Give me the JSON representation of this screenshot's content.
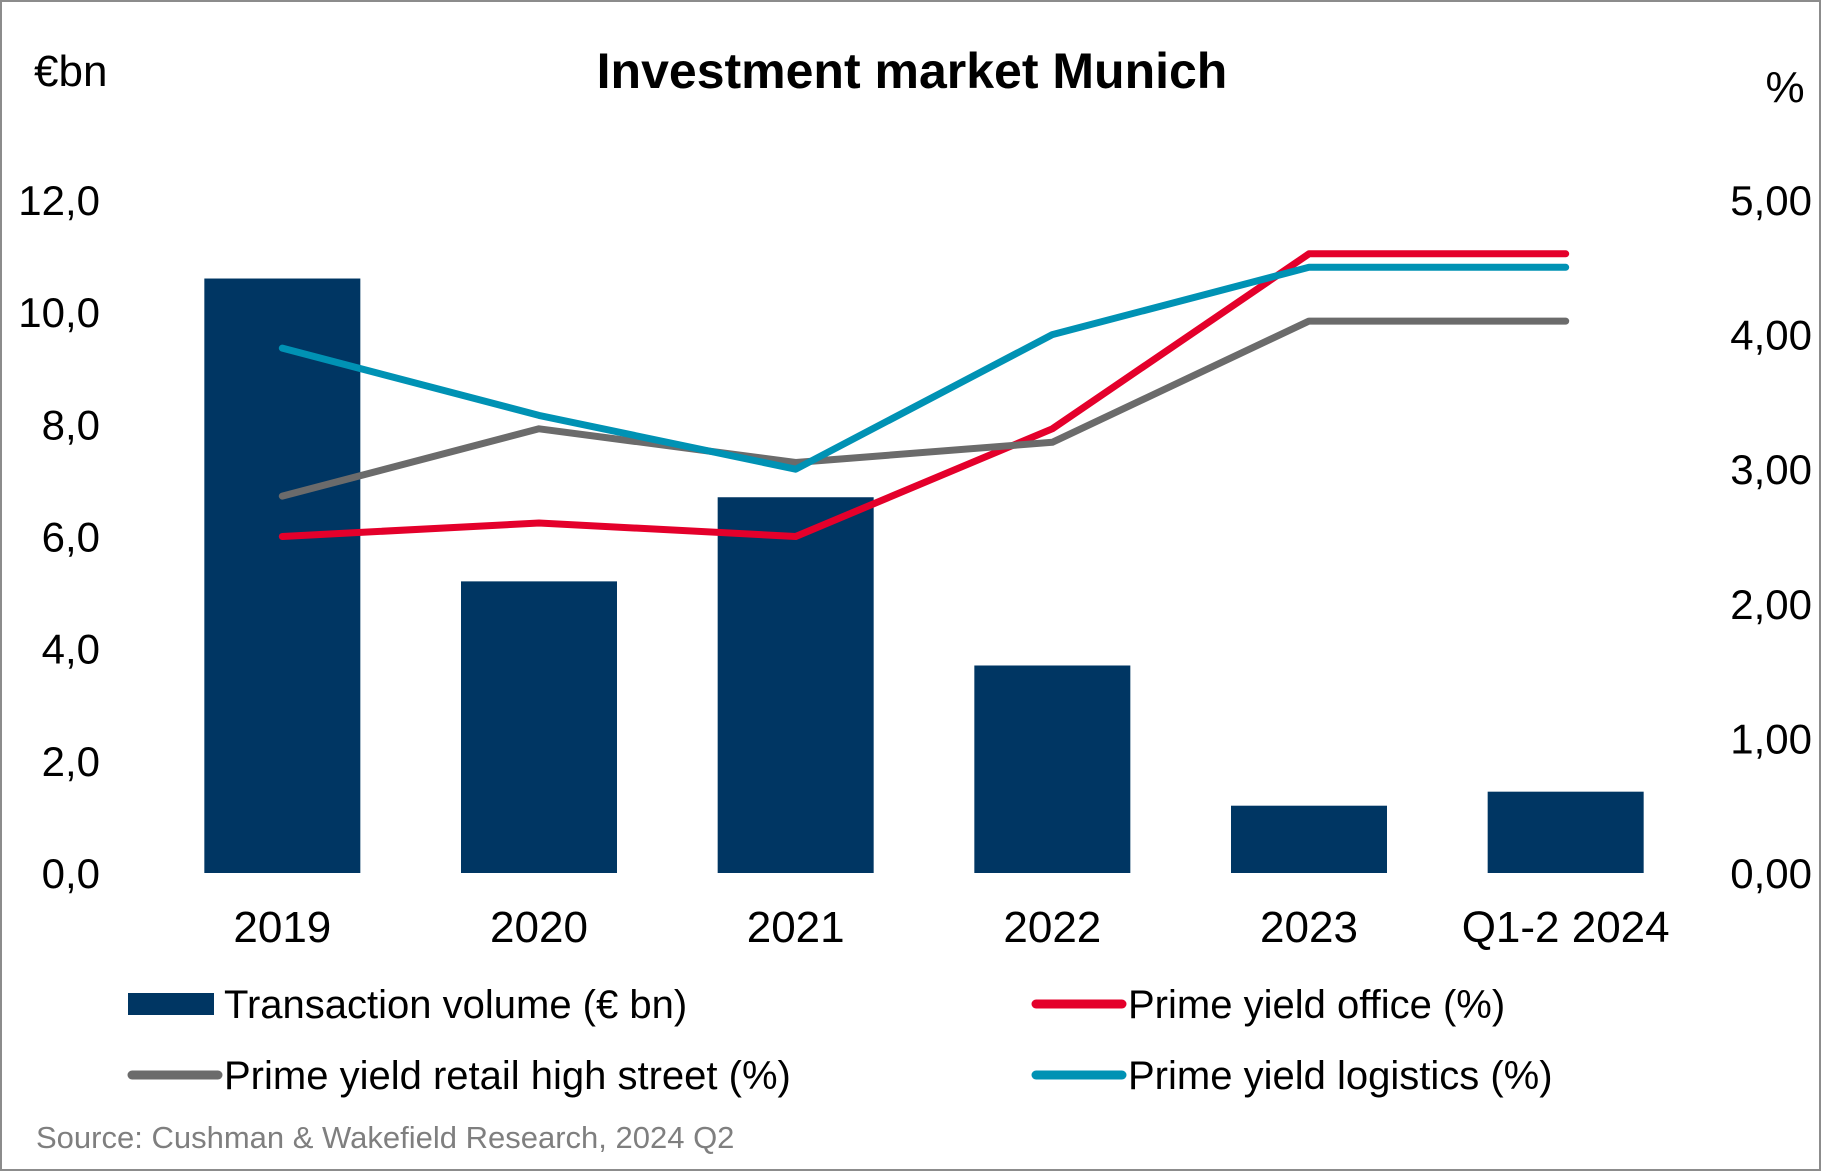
{
  "chart_data": {
    "type": "bar+line",
    "title": "Investment market Munich",
    "left_unit": "€bn",
    "right_unit": "%",
    "categories": [
      "2019",
      "2020",
      "2021",
      "2022",
      "2023",
      "Q1-2 2024"
    ],
    "left_axis": {
      "ylim": [
        0,
        12
      ],
      "ticks": [
        "0,0",
        "2,0",
        "4,0",
        "6,0",
        "8,0",
        "10,0",
        "12,0"
      ]
    },
    "right_axis": {
      "ylim": [
        0,
        5
      ],
      "ticks": [
        "0,00",
        "1,00",
        "2,00",
        "3,00",
        "4,00",
        "5,00"
      ]
    },
    "bars": {
      "name": "Transaction volume (€ bn)",
      "color": "#003663",
      "values": [
        10.6,
        5.2,
        6.7,
        3.7,
        1.2,
        1.45
      ]
    },
    "lines": [
      {
        "name": "Prime yield office (%)",
        "color": "#e4002b",
        "values": [
          2.5,
          2.6,
          2.5,
          3.3,
          4.6,
          4.6
        ]
      },
      {
        "name": "Prime yield retail high street (%)",
        "color": "#6b6b6b",
        "values": [
          2.8,
          3.3,
          3.05,
          3.2,
          4.1,
          4.1
        ]
      },
      {
        "name": "Prime yield logistics (%)",
        "color": "#0092b4",
        "values": [
          3.9,
          3.4,
          3.0,
          4.0,
          4.5,
          4.5
        ]
      }
    ],
    "grid": false,
    "legend_placement": "bottom"
  },
  "source": "Source: Cushman & Wakefield Research, 2024 Q2"
}
